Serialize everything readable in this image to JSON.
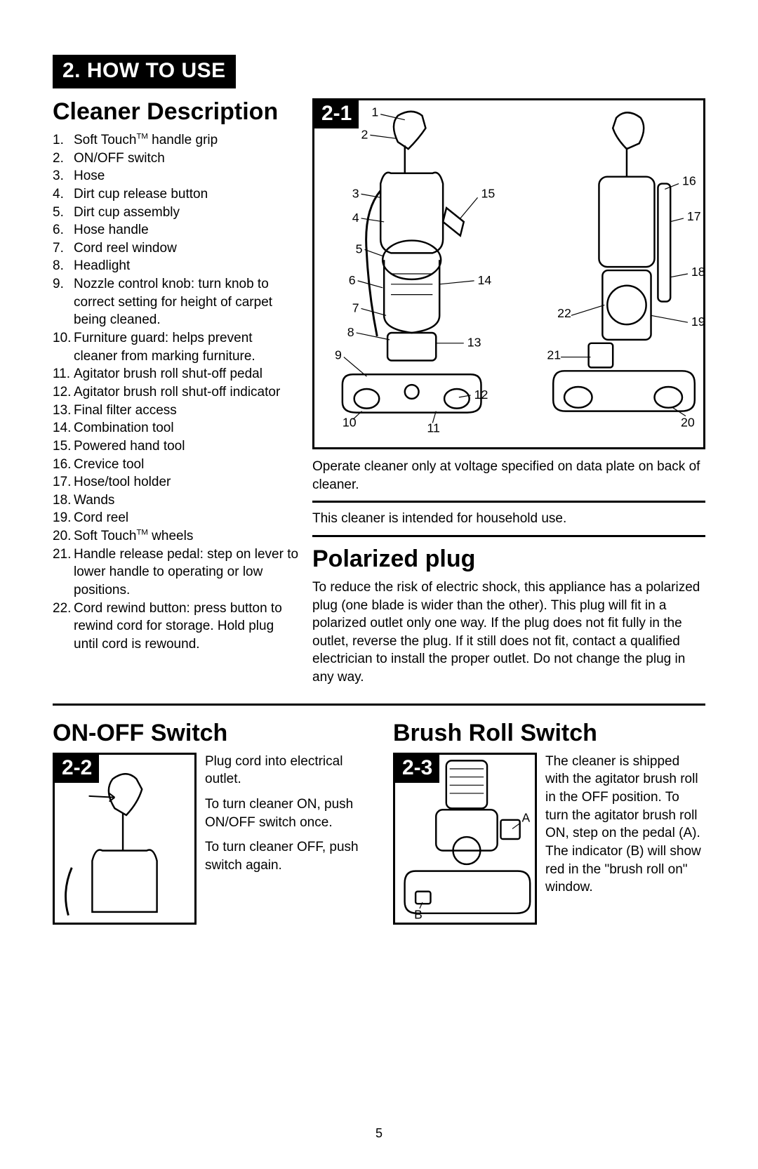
{
  "section_tag": "2. HOW TO USE",
  "heading_cleaner": "Cleaner Description",
  "parts": [
    {
      "n": "1.",
      "t": "Soft Touch™ handle grip"
    },
    {
      "n": "2.",
      "t": "ON/OFF switch"
    },
    {
      "n": "3.",
      "t": "Hose"
    },
    {
      "n": "4.",
      "t": "Dirt cup release button"
    },
    {
      "n": "5.",
      "t": "Dirt cup assembly"
    },
    {
      "n": "6.",
      "t": "Hose handle"
    },
    {
      "n": "7.",
      "t": "Cord reel window"
    },
    {
      "n": "8.",
      "t": "Headlight"
    },
    {
      "n": "9.",
      "t": "Nozzle control knob: turn knob to correct setting for height of carpet being cleaned."
    },
    {
      "n": "10.",
      "t": "Furniture guard: helps prevent cleaner from marking furniture."
    },
    {
      "n": "11.",
      "t": "Agitator brush roll shut-off pedal"
    },
    {
      "n": "12.",
      "t": "Agitator brush roll shut-off indicator"
    },
    {
      "n": "13.",
      "t": "Final filter access"
    },
    {
      "n": "14.",
      "t": "Combination tool"
    },
    {
      "n": "15.",
      "t": "Powered hand tool"
    },
    {
      "n": "16.",
      "t": "Crevice tool"
    },
    {
      "n": "17.",
      "t": "Hose/tool holder"
    },
    {
      "n": "18.",
      "t": "Wands"
    },
    {
      "n": "19.",
      "t": "Cord reel"
    },
    {
      "n": "20.",
      "t": "Soft Touch™ wheels"
    },
    {
      "n": "21.",
      "t": "Handle release pedal: step on lever to lower handle to operating or low positions."
    },
    {
      "n": "22.",
      "t": "Cord rewind button: press button to rewind cord for storage. Hold plug until cord is rewound."
    }
  ],
  "fig_21_tag": "2-1",
  "fig_21_callouts_left": [
    "1",
    "2",
    "3",
    "4",
    "5",
    "6",
    "7",
    "8",
    "9",
    "10",
    "11",
    "12",
    "13",
    "14",
    "15"
  ],
  "fig_21_callouts_right": [
    "16",
    "17",
    "18",
    "19",
    "20",
    "21",
    "22"
  ],
  "caption_operate": "Operate cleaner only at voltage specified on data plate on back of cleaner.",
  "caption_household": "This cleaner is intended for household use.",
  "heading_polarized": "Polarized plug",
  "polarized_text": "To reduce the risk of electric shock, this appliance has a polarized plug (one blade is wider than the other). This plug will fit in a polarized outlet only one way. If the plug does not fit fully in the outlet, reverse the plug. If it still does not fit, contact a qualified electrician to install the proper outlet. Do not change the plug in any way.",
  "heading_onoff": "ON-OFF Switch",
  "fig_22_tag": "2-2",
  "onoff_p1": "Plug cord into electrical outlet.",
  "onoff_p2": "To turn cleaner ON, push ON/OFF switch once.",
  "onoff_p3": "To turn cleaner OFF, push switch again.",
  "heading_brush": "Brush Roll Switch",
  "fig_23_tag": "2-3",
  "brush_text": "The cleaner is shipped with the agitator brush roll in the OFF position. To turn the agitator brush roll ON, step on the pedal (A). The indicator (B) will show red in the \"brush roll on\" window.",
  "brush_label_a": "A",
  "brush_label_b": "B",
  "page_number": "5",
  "colors": {
    "ink": "#000000",
    "paper": "#ffffff"
  }
}
